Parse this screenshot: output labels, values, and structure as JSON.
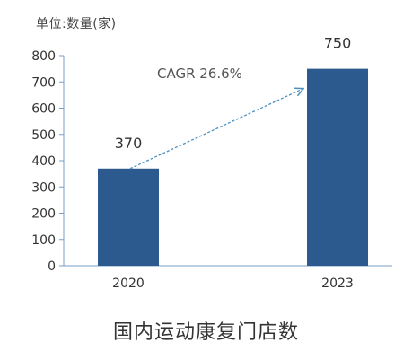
{
  "unit_label": "单位:数量(家)",
  "caption": "国内运动康复门店数",
  "colors": {
    "bar": "#2c5a8f",
    "axis": "#7a9cc6",
    "arrow": "#4a90c0",
    "text": "#333333"
  },
  "chart_data": {
    "type": "bar",
    "categories": [
      "2020",
      "2023"
    ],
    "values": [
      370,
      750
    ],
    "data_labels": [
      "370",
      "750"
    ],
    "yticks": [
      0,
      100,
      200,
      300,
      400,
      500,
      600,
      700,
      800
    ],
    "ylim": [
      0,
      800
    ],
    "annotation": "CAGR 26.6%",
    "title": "",
    "xlabel": "",
    "ylabel": "",
    "grid": false
  }
}
